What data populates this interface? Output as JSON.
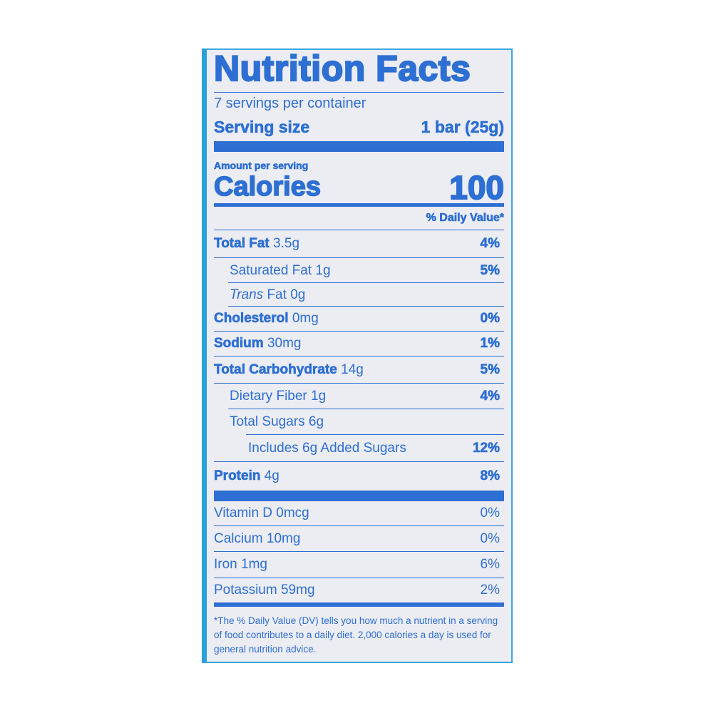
{
  "title": "Nutrition Facts",
  "servings_per_container": "7 servings per container",
  "serving_size": {
    "label": "Serving size",
    "value": "1 bar (25g)"
  },
  "amount_per_serving": "Amount per serving",
  "calories": {
    "label": "Calories",
    "value": "100"
  },
  "daily_value_header": "% Daily Value*",
  "nutrients": [
    {
      "name": "Total Fat",
      "amount": "3.5g",
      "dv": "4%"
    },
    {
      "name": "Saturated Fat",
      "amount": "1g",
      "dv": "5%"
    },
    {
      "name": "Trans",
      "name_suffix": "Fat",
      "amount": "0g",
      "dv": ""
    },
    {
      "name": "Cholesterol",
      "amount": "0mg",
      "dv": "0%"
    },
    {
      "name": "Sodium",
      "amount": "30mg",
      "dv": "1%"
    },
    {
      "name": "Total Carbohydrate",
      "amount": "14g",
      "dv": "5%"
    },
    {
      "name": "Dietary Fiber",
      "amount": "1g",
      "dv": "4%"
    },
    {
      "name": "Total Sugars",
      "amount": "6g",
      "dv": ""
    },
    {
      "name": "Includes 6g Added Sugars",
      "amount": "",
      "dv": "12%"
    },
    {
      "name": "Protein",
      "amount": "4g",
      "dv": "8%"
    }
  ],
  "vitamins": [
    {
      "name": "Vitamin D 0mcg",
      "dv": "0%"
    },
    {
      "name": "Calcium 10mg",
      "dv": "0%"
    },
    {
      "name": "Iron 1mg",
      "dv": "6%"
    },
    {
      "name": "Potassium 59mg",
      "dv": "2%"
    }
  ],
  "footnote": "*The % Daily Value (DV) tells you how much a nutrient in a serving of food contributes to a daily diet. 2,000 calories a day is used for general nutrition advice.",
  "colors": {
    "text": "#2d6fd2",
    "background": "#ececf3",
    "border": "#2aa1db"
  }
}
